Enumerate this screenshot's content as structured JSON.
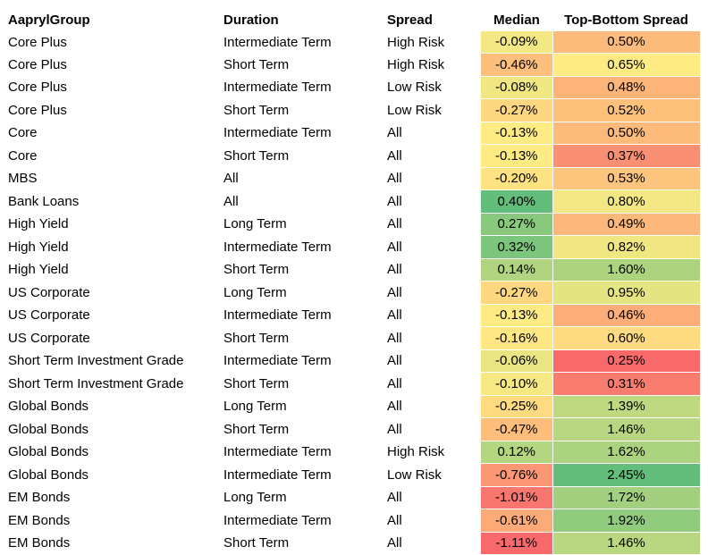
{
  "headers": [
    "AaprylGroup",
    "Duration",
    "Spread",
    "Median",
    "Top-Bottom Spread"
  ],
  "rows": [
    [
      "Core Plus",
      "Intermediate Term",
      "High Risk",
      "-0.09%",
      "0.50%"
    ],
    [
      "Core Plus",
      "Short Term",
      "High Risk",
      "-0.46%",
      "0.65%"
    ],
    [
      "Core Plus",
      "Intermediate Term",
      "Low Risk",
      "-0.08%",
      "0.48%"
    ],
    [
      "Core Plus",
      "Short Term",
      "Low Risk",
      "-0.27%",
      "0.52%"
    ],
    [
      "Core",
      "Intermediate Term",
      "All",
      "-0.13%",
      "0.50%"
    ],
    [
      "Core",
      "Short Term",
      "All",
      "-0.13%",
      "0.37%"
    ],
    [
      "MBS",
      "All",
      "All",
      "-0.20%",
      "0.53%"
    ],
    [
      "Bank Loans",
      "All",
      "All",
      "0.40%",
      "0.80%"
    ],
    [
      "High Yield",
      "Long Term",
      "All",
      "0.27%",
      "0.49%"
    ],
    [
      "High Yield",
      "Intermediate Term",
      "All",
      "0.32%",
      "0.82%"
    ],
    [
      "High Yield",
      "Short Term",
      "All",
      "0.14%",
      "1.60%"
    ],
    [
      "US Corporate",
      "Long Term",
      "All",
      "-0.27%",
      "0.95%"
    ],
    [
      "US Corporate",
      "Intermediate Term",
      "All",
      "-0.13%",
      "0.46%"
    ],
    [
      "US Corporate",
      "Short Term",
      "All",
      "-0.16%",
      "0.60%"
    ],
    [
      "Short Term Investment Grade",
      "Intermediate Term",
      "All",
      "-0.06%",
      "0.25%"
    ],
    [
      "Short Term Investment Grade",
      "Short Term",
      "All",
      "-0.10%",
      "0.31%"
    ],
    [
      "Global Bonds",
      "Long Term",
      "All",
      "-0.25%",
      "1.39%"
    ],
    [
      "Global Bonds",
      "Short Term",
      "All",
      "-0.47%",
      "1.46%"
    ],
    [
      "Global Bonds",
      "Intermediate Term",
      "High Risk",
      "0.12%",
      "1.62%"
    ],
    [
      "Global Bonds",
      "Intermediate Term",
      "Low Risk",
      "-0.76%",
      "2.45%"
    ],
    [
      "EM Bonds",
      "Long Term",
      "All",
      "-1.01%",
      "1.72%"
    ],
    [
      "EM Bonds",
      "Intermediate Term",
      "All",
      "-0.61%",
      "1.92%"
    ],
    [
      "EM Bonds",
      "Short Term",
      "All",
      "-1.11%",
      "1.46%"
    ]
  ],
  "colors": {
    "low": "#f8696b",
    "mid": "#ffeb84",
    "high": "#63be7b"
  }
}
